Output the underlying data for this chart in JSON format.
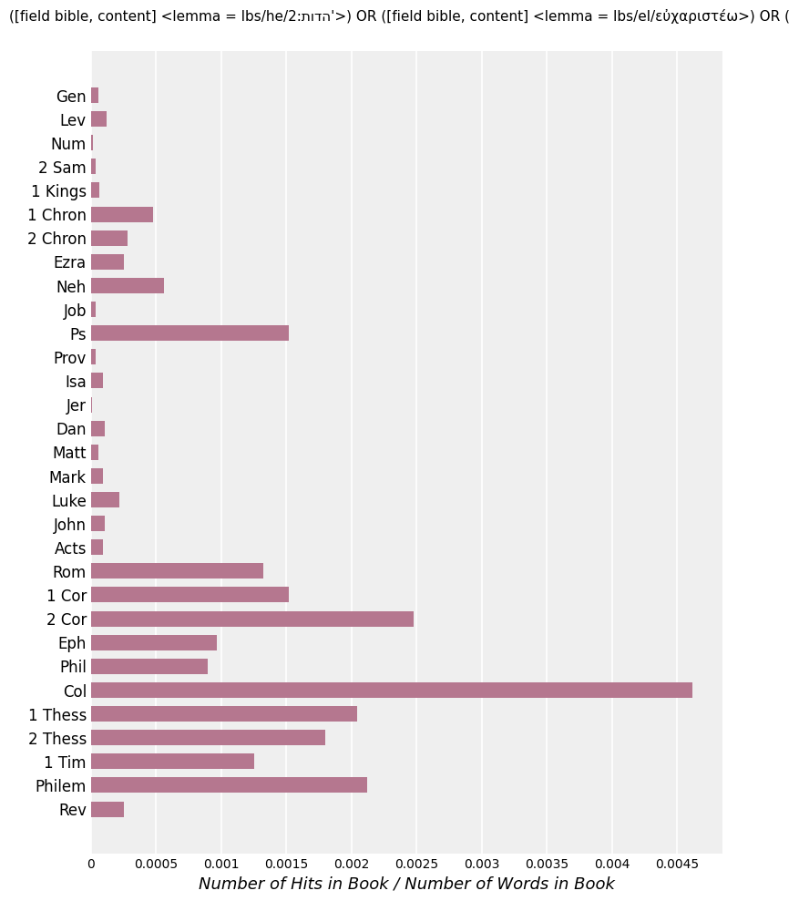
{
  "title": "([field bible, content] <lemma = lbs/he/2:תודה'>) OR ([field bible, content] <lemma = lbs/el/εὐχαριστέω>) OR (",
  "xlabel": "Number of Hits in Book / Number of Words in Book",
  "background_color": "#efefef",
  "bar_color": "#b5778f",
  "categories": [
    "Gen",
    "Lev",
    "Num",
    "2 Sam",
    "1 Kings",
    "1 Chron",
    "2 Chron",
    "Ezra",
    "Neh",
    "Job",
    "Ps",
    "Prov",
    "Isa",
    "Jer",
    "Dan",
    "Matt",
    "Mark",
    "Luke",
    "John",
    "Acts",
    "Rom",
    "1 Cor",
    "2 Cor",
    "Eph",
    "Phil",
    "Col",
    "1 Thess",
    "2 Thess",
    "1 Tim",
    "Philem",
    "Rev"
  ],
  "values": [
    5.5e-05,
    0.00012,
    1.8e-05,
    4e-05,
    6.5e-05,
    0.00048,
    0.00028,
    0.00025,
    0.00056,
    3.8e-05,
    0.00152,
    4e-05,
    9.5e-05,
    8e-06,
    0.00011,
    6e-05,
    9e-05,
    0.00022,
    0.00011,
    9e-05,
    0.00132,
    0.00152,
    0.00248,
    0.00097,
    0.0009,
    0.00462,
    0.00204,
    0.0018,
    0.00125,
    0.00212,
    0.00025
  ],
  "xlim": [
    0,
    0.00485
  ],
  "xticks": [
    0,
    0.0005,
    0.001,
    0.0015,
    0.002,
    0.0025,
    0.003,
    0.0035,
    0.004,
    0.0045
  ],
  "xtick_labels": [
    "0",
    "0.0005",
    "0.001",
    "0.0015",
    "0.002",
    "0.0025",
    "0.003",
    "0.0035",
    "0.004",
    "0.0045"
  ],
  "title_fontsize": 11,
  "xlabel_fontsize": 13,
  "ylabel_fontsize": 12,
  "bar_height": 0.65
}
